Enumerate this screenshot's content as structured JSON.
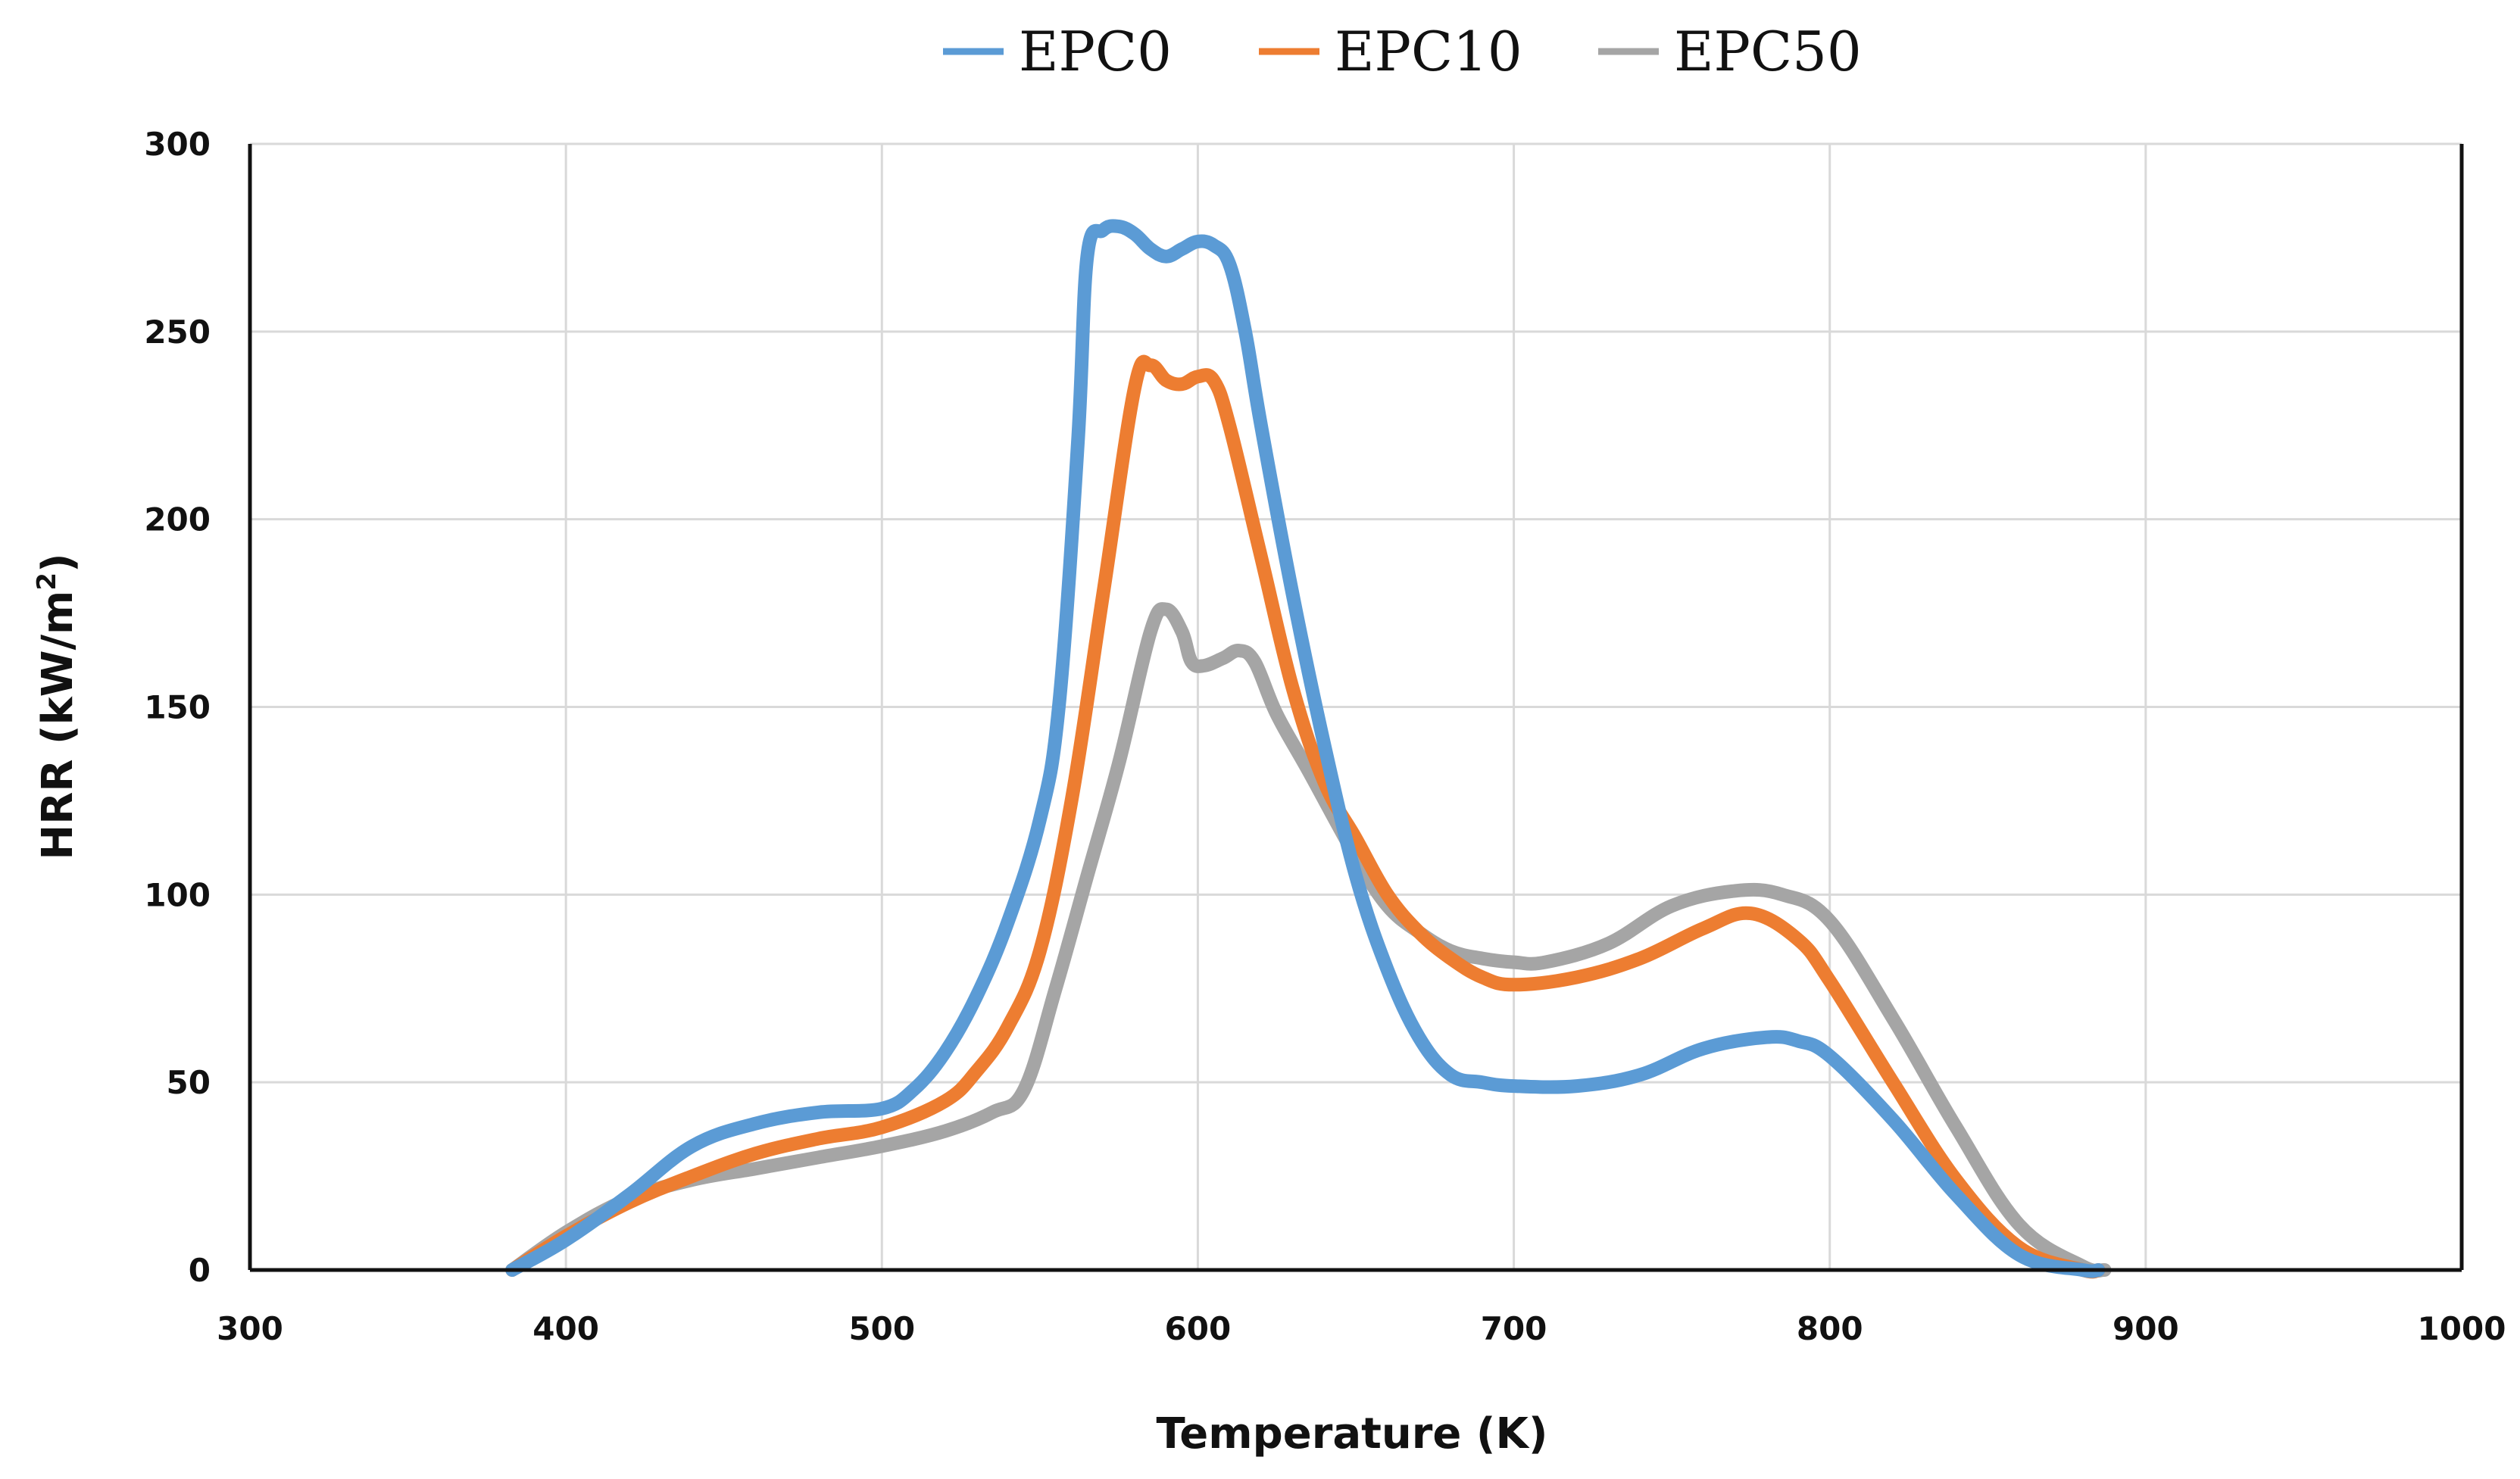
{
  "chart_data": {
    "type": "line",
    "xlabel": "Temperature (K)",
    "ylabel": "HRR (kW/m",
    "ylabel_sup": "2",
    "ylabel_end": ")",
    "xlim": [
      300,
      1000
    ],
    "ylim": [
      0,
      300
    ],
    "x_ticks": [
      300,
      400,
      500,
      600,
      700,
      800,
      900,
      1000
    ],
    "y_ticks": [
      0,
      50,
      100,
      150,
      200,
      250,
      300
    ],
    "grid": true,
    "legend_position": "top-center",
    "series": [
      {
        "name": "EPC0",
        "color": "#5b9bd5",
        "x": [
          383,
          400,
          420,
          440,
          460,
          480,
          500,
          510,
          520,
          530,
          540,
          550,
          556,
          562,
          565,
          570,
          575,
          580,
          585,
          590,
          595,
          600,
          605,
          610,
          615,
          620,
          630,
          640,
          650,
          660,
          670,
          680,
          690,
          700,
          720,
          740,
          760,
          780,
          790,
          800,
          820,
          840,
          860,
          880,
          885
        ],
        "y": [
          0,
          8,
          20,
          33,
          39,
          42,
          43,
          48,
          58,
          73,
          93,
          120,
          150,
          220,
          270,
          277,
          278,
          276,
          272,
          270,
          272,
          274,
          273,
          268,
          250,
          225,
          180,
          140,
          105,
          80,
          62,
          52,
          50,
          49,
          49,
          52,
          59,
          62,
          61,
          57,
          40,
          20,
          4,
          0,
          0
        ]
      },
      {
        "name": "EPC10",
        "color": "#ed7d31",
        "x": [
          383,
          400,
          420,
          440,
          460,
          480,
          500,
          520,
          530,
          540,
          550,
          560,
          570,
          580,
          585,
          590,
          595,
          600,
          605,
          610,
          620,
          630,
          640,
          650,
          660,
          670,
          680,
          690,
          700,
          720,
          740,
          760,
          775,
          790,
          800,
          820,
          840,
          860,
          880,
          885
        ],
        "y": [
          0,
          9,
          18,
          25,
          31,
          35,
          38,
          45,
          53,
          65,
          85,
          125,
          180,
          235,
          241,
          237,
          236,
          238,
          237,
          225,
          190,
          155,
          130,
          115,
          100,
          90,
          83,
          78,
          76,
          78,
          83,
          91,
          95,
          88,
          77,
          50,
          24,
          6,
          0,
          0
        ]
      },
      {
        "name": "EPC50",
        "color": "#a5a5a5",
        "x": [
          383,
          400,
          420,
          440,
          460,
          480,
          500,
          520,
          535,
          545,
          555,
          565,
          575,
          585,
          590,
          595,
          598,
          602,
          608,
          613,
          618,
          625,
          635,
          650,
          660,
          670,
          680,
          690,
          700,
          710,
          730,
          750,
          770,
          785,
          800,
          820,
          840,
          860,
          880,
          887
        ],
        "y": [
          0,
          10,
          19,
          24,
          27,
          30,
          33,
          37,
          42,
          48,
          75,
          105,
          135,
          170,
          176,
          170,
          162,
          161,
          163,
          165,
          162,
          148,
          133,
          110,
          97,
          90,
          85,
          83,
          82,
          82,
          87,
          97,
          101,
          100,
          93,
          67,
          38,
          12,
          1,
          0
        ]
      }
    ]
  }
}
